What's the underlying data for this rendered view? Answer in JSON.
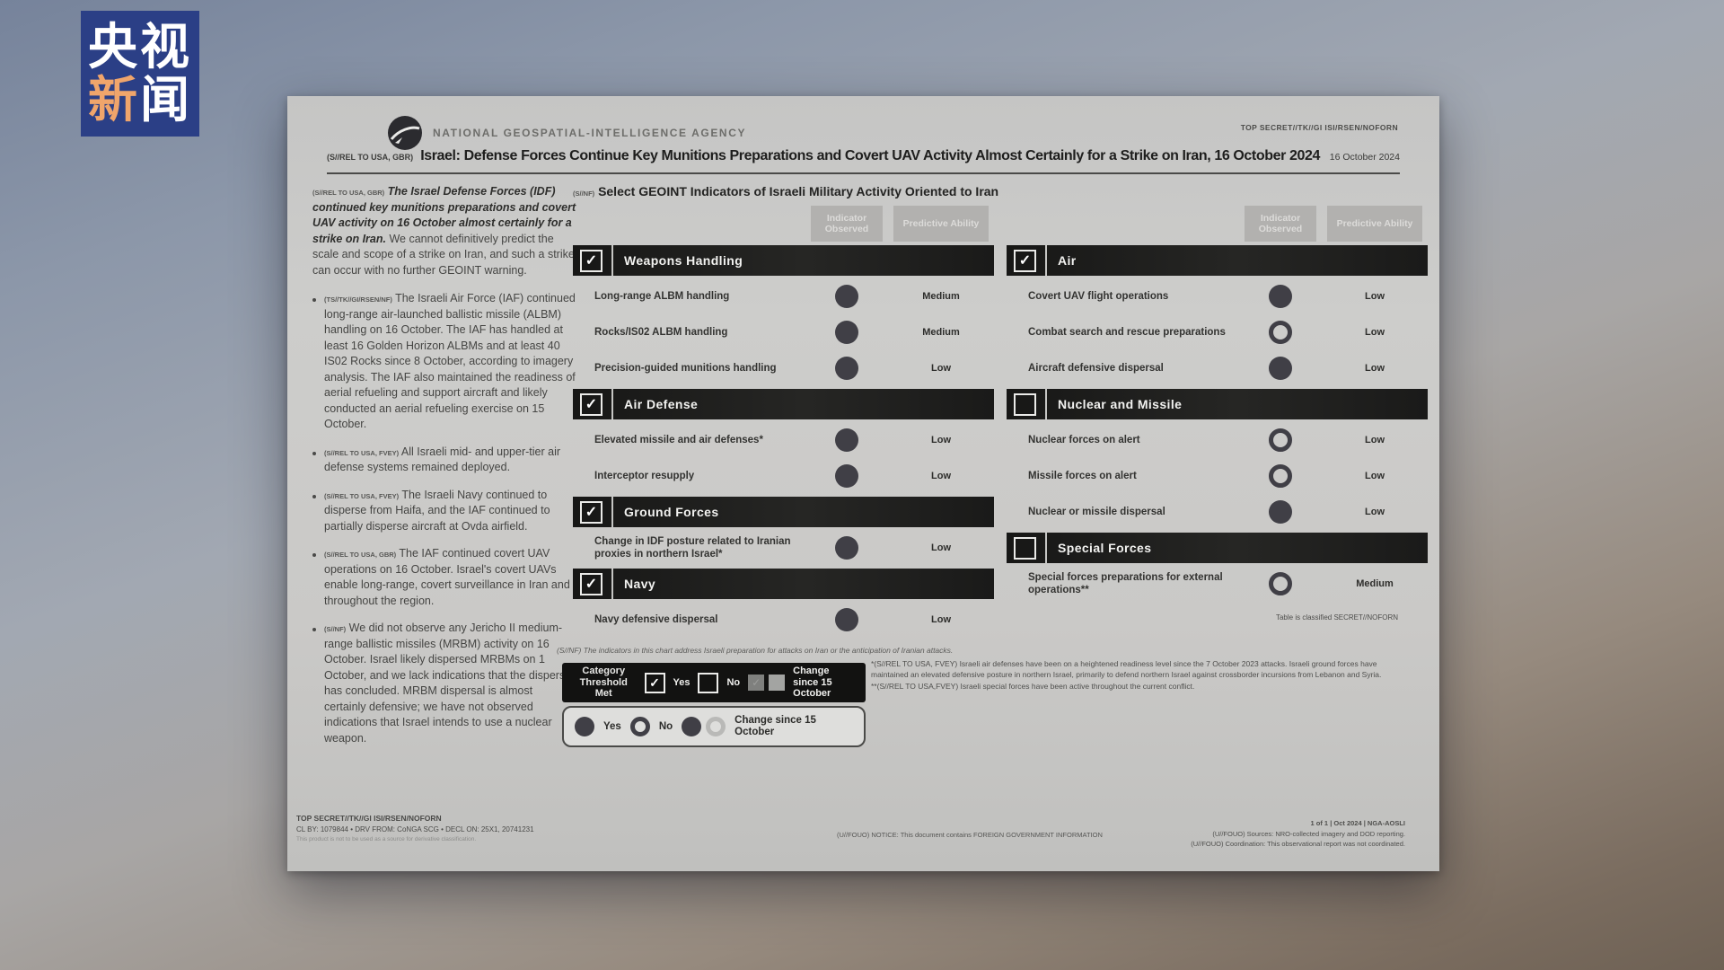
{
  "watermark": {
    "char_top_left": "央",
    "char_top_right": "视",
    "char_bottom_left": "新",
    "char_bottom_right": "闻",
    "background_color": "#2b3f86",
    "accent_color": "#f0a56b"
  },
  "document": {
    "agency": "NATIONAL GEOSPATIAL-INTELLIGENCE AGENCY",
    "top_classification": "TOP SECRET//TK//GI ISI/RSEN/NOFORN",
    "title_marking": "(S//REL TO USA, GBR)",
    "title": "Israel: Defense Forces Continue Key Munitions Preparations and Covert UAV Activity Almost Certainly for a Strike on Iran, 16 October 2024",
    "date": "16 October 2024",
    "summary": {
      "marking": "(S//REL TO USA, GBR)",
      "lead": "The Israel Defense Forces (IDF) continued key munitions preparations and covert UAV activity on 16 October almost certainly for a strike on Iran.",
      "rest": "We cannot definitively predict the scale and scope of a strike on Iran, and such a strike can occur with no further GEOINT warning."
    },
    "bullets": [
      {
        "marking": "(TS//TK//GI/RSEN/NF)",
        "text": "The Israeli Air Force (IAF) continued long-range air-launched ballistic missile (ALBM) handling on 16 October. The IAF has handled at least 16 Golden Horizon ALBMs and at least 40 IS02 Rocks since 8 October, according to imagery analysis. The IAF also maintained the readiness of aerial refueling and support aircraft and likely conducted an aerial refueling exercise on 15 October."
      },
      {
        "marking": "(S//REL TO USA, FVEY)",
        "text": "All Israeli mid- and upper-tier air defense systems remained deployed."
      },
      {
        "marking": "(S//REL TO USA, FVEY)",
        "text": "The Israeli Navy continued to disperse from Haifa, and the IAF continued to partially disperse aircraft at Ovda airfield."
      },
      {
        "marking": "(S//REL TO USA, GBR)",
        "text": "The IAF continued covert UAV operations on 16 October. Israel's covert UAVs enable long-range, covert surveillance in Iran and throughout the region."
      },
      {
        "marking": "(S//NF)",
        "text": "We did not observe any Jericho II medium-range ballistic missiles (MRBM) activity on 16 October. Israel likely dispersed MRBMs on 1 October, and we lack indications that the dispersal has concluded. MRBM dispersal is almost certainly defensive; we have not observed indications that Israel intends to use a nuclear weapon."
      }
    ],
    "table": {
      "marking": "(S//NF)",
      "title": "Select GEOINT Indicators of Israeli Military Activity Oriented to Iran",
      "col1": "Indicator Observed",
      "col2": "Predictive Ability",
      "left_sections": [
        {
          "name": "Weapons Handling",
          "checked": true,
          "rows": [
            {
              "label": "Long-range ALBM handling",
              "observed": "filled",
              "ability": "Medium"
            },
            {
              "label": "Rocks/IS02 ALBM handling",
              "observed": "filled",
              "ability": "Medium"
            },
            {
              "label": "Precision-guided munitions handling",
              "observed": "filled",
              "ability": "Low"
            }
          ]
        },
        {
          "name": "Air Defense",
          "checked": true,
          "rows": [
            {
              "label": "Elevated missile and air defenses*",
              "observed": "filled",
              "ability": "Low"
            },
            {
              "label": "Interceptor resupply",
              "observed": "filled",
              "ability": "Low"
            }
          ]
        },
        {
          "name": "Ground Forces",
          "checked": true,
          "rows": [
            {
              "label": "Change in IDF posture related to Iranian proxies in northern Israel*",
              "observed": "filled",
              "ability": "Low"
            }
          ]
        },
        {
          "name": "Navy",
          "checked": true,
          "rows": [
            {
              "label": "Navy defensive dispersal",
              "observed": "filled",
              "ability": "Low"
            }
          ]
        }
      ],
      "right_sections": [
        {
          "name": "Air",
          "checked": true,
          "rows": [
            {
              "label": "Covert UAV flight operations",
              "observed": "filled",
              "ability": "Low"
            },
            {
              "label": "Combat search and rescue preparations",
              "observed": "open",
              "ability": "Low"
            },
            {
              "label": "Aircraft defensive dispersal",
              "observed": "filled",
              "ability": "Low"
            }
          ]
        },
        {
          "name": "Nuclear and Missile",
          "checked": false,
          "rows": [
            {
              "label": "Nuclear forces on alert",
              "observed": "open",
              "ability": "Low"
            },
            {
              "label": "Missile forces on alert",
              "observed": "open",
              "ability": "Low"
            },
            {
              "label": "Nuclear or missile dispersal",
              "observed": "filled",
              "ability": "Low"
            }
          ]
        },
        {
          "name": "Special Forces",
          "checked": false,
          "rows": [
            {
              "label": "Special forces preparations for external operations**",
              "observed": "open",
              "ability": "Medium"
            }
          ]
        }
      ],
      "classification_note": "Table is classified SECRET//NOFORN",
      "note": "(S//NF) The indicators in this chart address Israeli preparation for attacks on Iran or the anticipation of Iranian attacks.",
      "legend": {
        "category_label": "Category Threshold Met",
        "yes": "Yes",
        "no": "No",
        "change": "Change since 15 October"
      }
    },
    "footnotes": [
      "*(S//REL TO USA, FVEY) Israeli air defenses have been on a heightened readiness level since the 7 October 2023 attacks. Israeli ground forces have maintained an elevated defensive posture in northern Israel, primarily to defend northern Israel against crossborder incursions from Lebanon and Syria.",
      "**(S//REL TO USA,FVEY) Israeli special forces have been active throughout the current conflict."
    ],
    "footer": {
      "left_line1": "TOP SECRET//TK//GI ISI/RSEN/NOFORN",
      "left_line2": "CL BY: 1079844 • DRV FROM: CoNGA SCG • DECL ON: 25X1, 20741231",
      "left_line3": "This product is not to be used as a source for derivative classification.",
      "center": "(U//FOUO) NOTICE: This document contains FOREIGN GOVERNMENT INFORMATION",
      "right_line1": "1 of 1  |  Oct 2024  |  NGA-AOSLI",
      "right_line2": "(U//FOUO) Sources: NRO-collected imagery and DOD reporting.",
      "right_line3": "(U//FOUO) Coordination: This observational report was not coordinated."
    }
  }
}
